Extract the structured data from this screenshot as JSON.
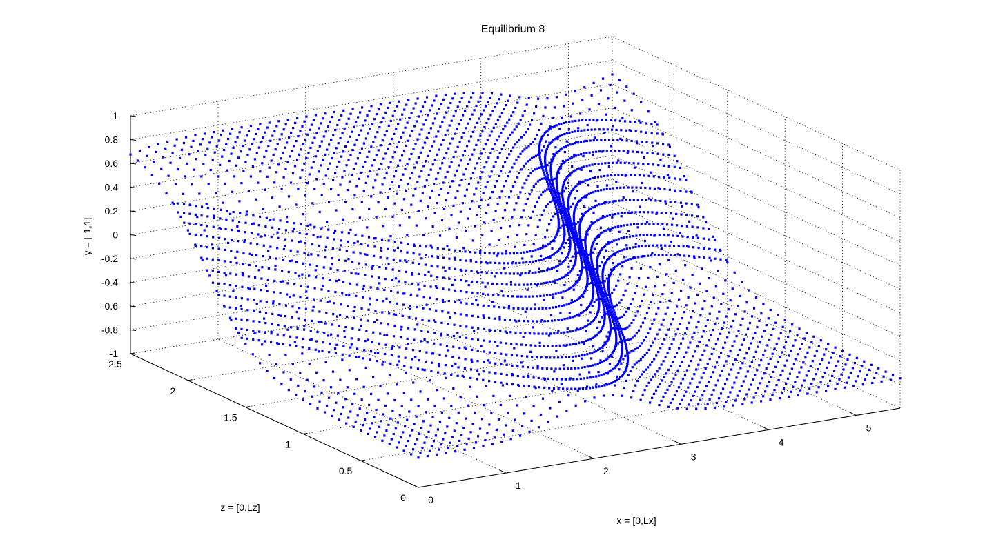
{
  "chart_data": {
    "type": "scatter",
    "projection": "3d",
    "title": "Equilibrium 8",
    "xlabel": "x = [0,Lx]",
    "ylabel": "y = [-1,1]",
    "zlabel": "z = [0,Lz]",
    "x_range": [
      0,
      5.5
    ],
    "y_range": [
      -1,
      1
    ],
    "z_range": [
      0,
      2.5
    ],
    "x_ticks": [
      "0",
      "1",
      "2",
      "3",
      "4",
      "5"
    ],
    "y_ticks": [
      "-1",
      "-0.8",
      "-0.6",
      "-0.4",
      "-0.2",
      "0",
      "0.2",
      "0.4",
      "0.6",
      "0.8",
      "1"
    ],
    "z_ticks": [
      "0",
      "0.5",
      "1",
      "1.5",
      "2",
      "2.5"
    ],
    "grid": true,
    "marker_color": "#0000ff",
    "series": [
      {
        "surface": "y = 0.75*tanh(2.2*(z - 1.2 - 0.85*sin(1.15*x + 2.3)))",
        "x_extent": [
          0,
          5.5
        ],
        "z_extent": [
          0,
          2.5
        ]
      }
    ]
  },
  "colors": {
    "points": "#0000ff",
    "axes": "#000000",
    "grid": "#222222",
    "background": "#ffffff"
  }
}
